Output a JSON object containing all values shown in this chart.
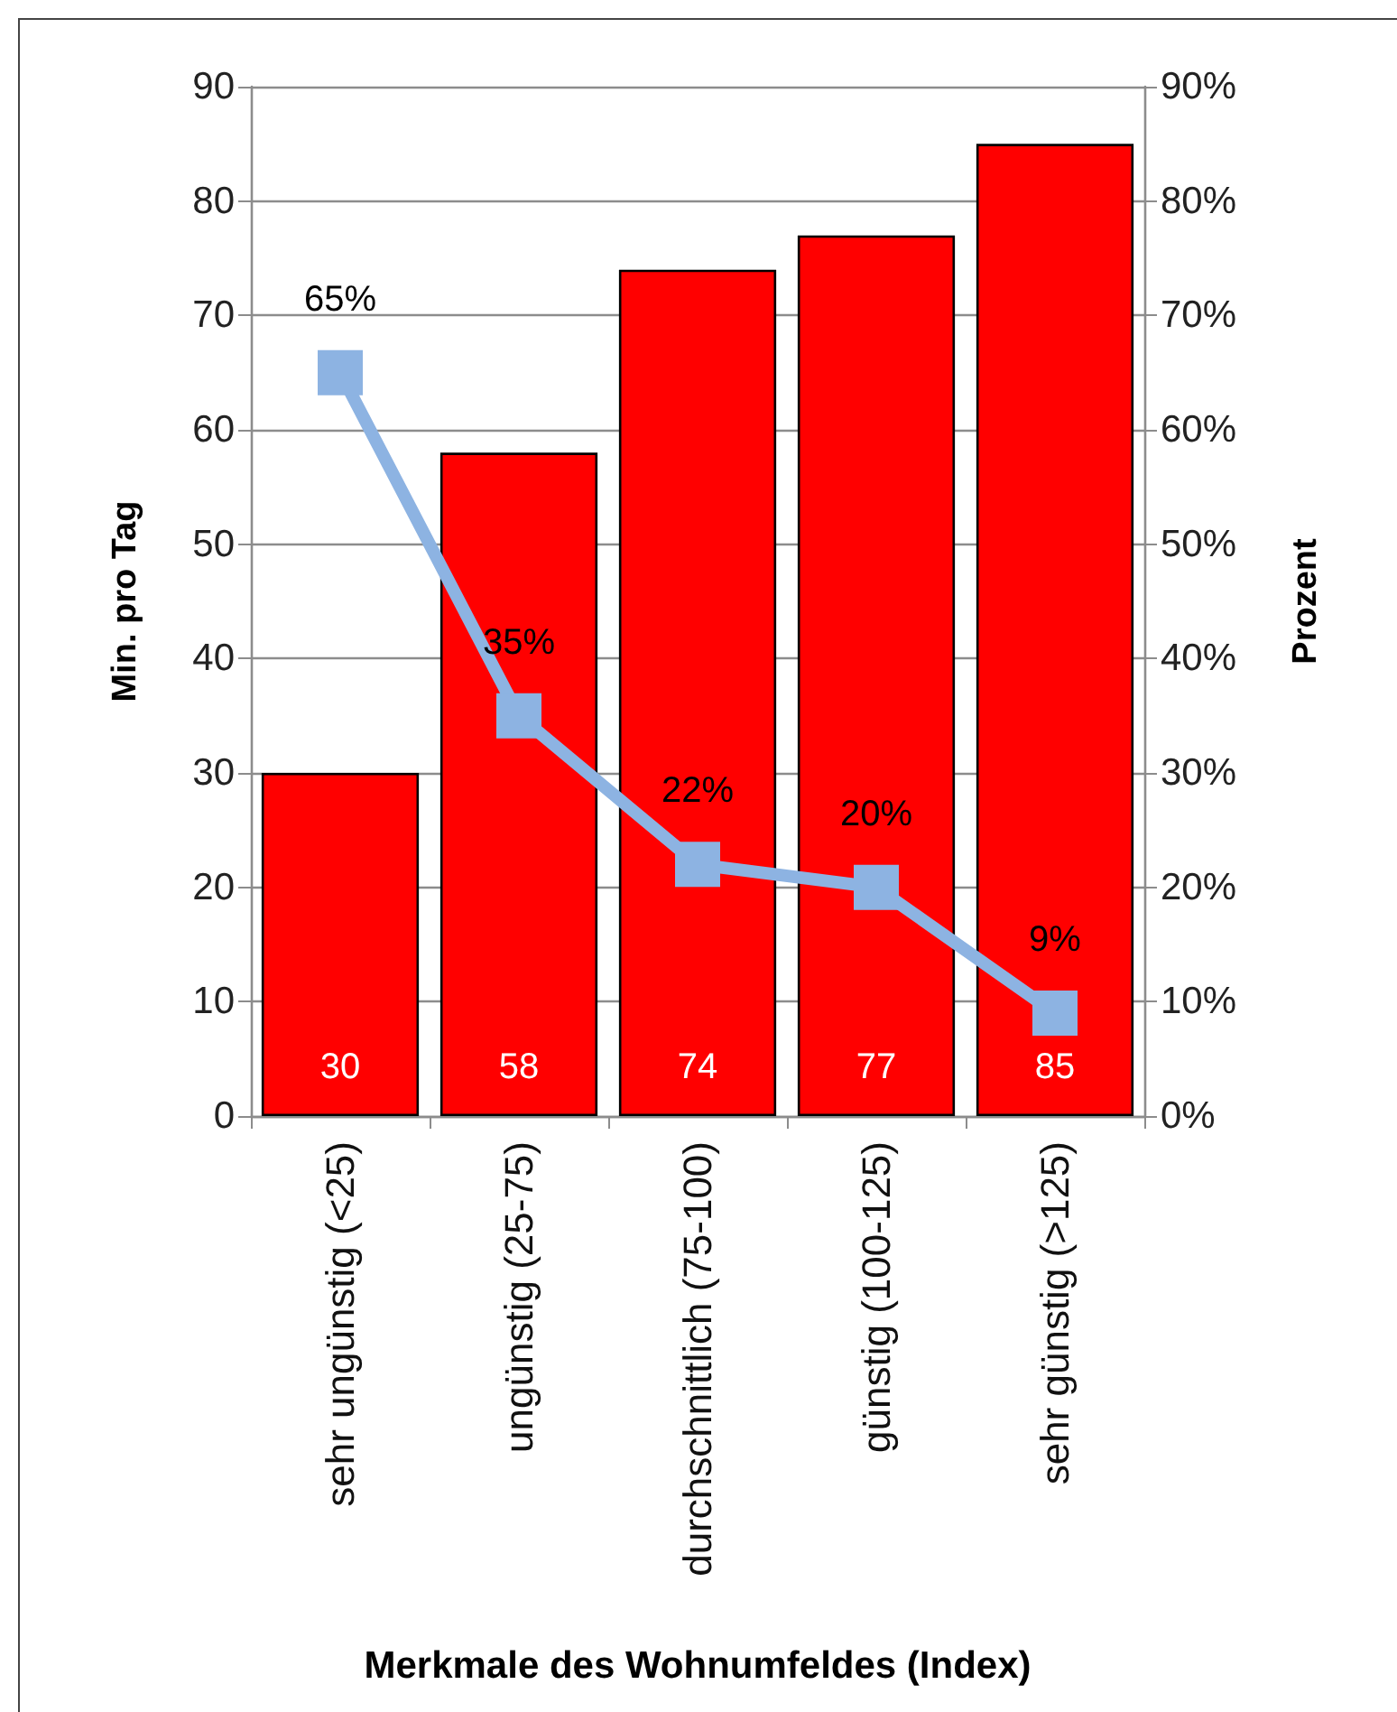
{
  "chart_data": {
    "type": "bar",
    "xlabel": "Merkmale des Wohnumfeldes (Index)",
    "ylabel": "Min. pro Tag",
    "y2label": "Prozent",
    "categories": [
      "sehr ungünstig (<25)",
      "ungünstig (25-75)",
      "durchschnittlich (75-100)",
      "günstig (100-125)",
      "sehr günstig (>125)"
    ],
    "series": [
      {
        "color": "#ff0000",
        "values": [
          30,
          58,
          74,
          77,
          85
        ],
        "value_labels": [
          "30",
          "58",
          "74",
          "77",
          "85"
        ]
      },
      {
        "type": "line",
        "axis": "y2",
        "color": "#8db3e2",
        "values": [
          65,
          35,
          22,
          20,
          9
        ],
        "value_labels": [
          "65%",
          "35%",
          "22%",
          "20%",
          "9%"
        ]
      }
    ],
    "ylim": [
      0,
      90
    ],
    "yticks": [
      0,
      10,
      20,
      30,
      40,
      50,
      60,
      70,
      80,
      90
    ],
    "y2lim": [
      0,
      90
    ],
    "y2ticks": [
      {
        "value": 0,
        "label": "0%"
      },
      {
        "value": 10,
        "label": "10%"
      },
      {
        "value": 20,
        "label": "20%"
      },
      {
        "value": 30,
        "label": "30%"
      },
      {
        "value": 40,
        "label": "40%"
      },
      {
        "value": 50,
        "label": "50%"
      },
      {
        "value": 60,
        "label": "60%"
      },
      {
        "value": 70,
        "label": "70%"
      },
      {
        "value": 80,
        "label": "80%"
      },
      {
        "value": 90,
        "label": "90%"
      }
    ],
    "grid": "y",
    "marker": "square",
    "line_style": "solid"
  }
}
